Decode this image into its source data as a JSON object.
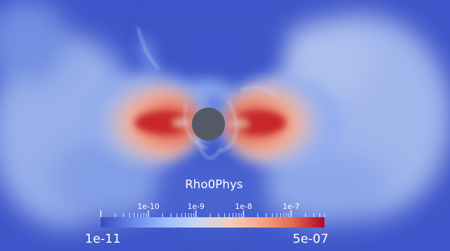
{
  "visualization": {
    "field_name": "Rho0Phys",
    "colormap": "cool-to-warm",
    "scale": "log",
    "background_color": "#3e56c9",
    "body_color": "#555a66"
  },
  "colorbar": {
    "min_label": "1e-11",
    "max_label": "5e-07",
    "tick_labels": [
      "1e-10",
      "1e-9",
      "1e-8",
      "1e-7"
    ],
    "stops": [
      "#3b4cc0",
      "#6788ee",
      "#9abbff",
      "#c9d7f0",
      "#edd1c2",
      "#f7a889",
      "#e26952",
      "#b40426"
    ]
  }
}
